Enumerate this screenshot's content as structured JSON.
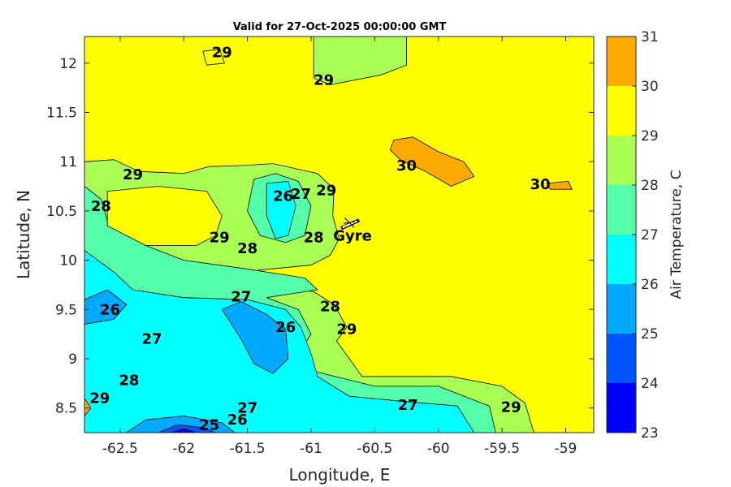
{
  "chart_data": {
    "type": "heatmap",
    "title": "Valid for 27-Oct-2025 00:00:00 GMT",
    "xlabel": "Longitude, E",
    "ylabel": "Latitude, N",
    "xlim": [
      -62.78,
      -58.78
    ],
    "ylim": [
      8.25,
      12.27
    ],
    "xticks": [
      -62.5,
      -62,
      -61.5,
      -61,
      -60.5,
      -60,
      -59.5,
      -59
    ],
    "xtick_labels": [
      "-62.5",
      "-62",
      "-61.5",
      "-61",
      "-60.5",
      "-60",
      "-59.5",
      "-59"
    ],
    "yticks": [
      8.5,
      9,
      9.5,
      10,
      10.5,
      11,
      11.5,
      12
    ],
    "ytick_labels": [
      "8.5",
      "9",
      "9.5",
      "10",
      "10.5",
      "11",
      "11.5",
      "12"
    ],
    "colorbar": {
      "label": "Air Temperature, C",
      "levels": [
        23,
        24,
        25,
        26,
        27,
        28,
        29,
        30,
        31
      ],
      "tick_labels": [
        "23",
        "24",
        "25",
        "26",
        "27",
        "28",
        "29",
        "30",
        "31"
      ],
      "colors": [
        "#0000ff",
        "#0055ff",
        "#00aaff",
        "#00ffff",
        "#55ffaa",
        "#aaff55",
        "#ffff00",
        "#ffaa00",
        "#ff5500"
      ]
    },
    "regions": [
      {
        "level": 29,
        "points": [
          [
            -62.78,
            8.25
          ],
          [
            -58.78,
            8.25
          ],
          [
            -58.78,
            12.27
          ],
          [
            -62.78,
            12.27
          ]
        ]
      },
      {
        "level": 28,
        "points": [
          [
            -61.55,
            12.27
          ],
          [
            -60.98,
            12.27
          ],
          [
            -60.98,
            11.85
          ],
          [
            -60.85,
            11.78
          ],
          [
            -60.45,
            11.88
          ],
          [
            -60.25,
            11.98
          ],
          [
            -60.25,
            12.27
          ]
        ]
      },
      {
        "level": 28,
        "points": [
          [
            -62.78,
            8.25
          ],
          [
            -62.78,
            11.0
          ],
          [
            -62.55,
            11.02
          ],
          [
            -62.35,
            10.9
          ],
          [
            -62.0,
            10.88
          ],
          [
            -61.8,
            10.95
          ],
          [
            -61.55,
            10.96
          ],
          [
            -61.3,
            10.98
          ],
          [
            -60.95,
            10.88
          ],
          [
            -60.82,
            10.72
          ],
          [
            -60.83,
            10.45
          ],
          [
            -60.78,
            10.22
          ],
          [
            -60.85,
            10.05
          ],
          [
            -61.0,
            9.95
          ],
          [
            -61.4,
            9.9
          ],
          [
            -61.85,
            9.8
          ],
          [
            -61.3,
            9.73
          ],
          [
            -60.98,
            9.68
          ],
          [
            -60.82,
            9.55
          ],
          [
            -60.72,
            9.32
          ],
          [
            -60.8,
            9.18
          ],
          [
            -60.6,
            8.82
          ],
          [
            -60.3,
            8.82
          ],
          [
            -59.9,
            8.82
          ],
          [
            -59.5,
            8.72
          ],
          [
            -59.32,
            8.55
          ],
          [
            -59.25,
            8.25
          ]
        ]
      },
      {
        "level": 27,
        "points": [
          [
            -62.78,
            8.25
          ],
          [
            -62.78,
            10.75
          ],
          [
            -62.65,
            10.62
          ],
          [
            -62.6,
            10.4
          ],
          [
            -62.45,
            10.32
          ],
          [
            -62.3,
            10.15
          ],
          [
            -62.0,
            10.0
          ],
          [
            -61.55,
            9.92
          ],
          [
            -61.05,
            9.82
          ],
          [
            -60.95,
            9.7
          ],
          [
            -61.35,
            9.62
          ],
          [
            -61.1,
            9.5
          ],
          [
            -61.0,
            9.25
          ],
          [
            -61.1,
            9.05
          ],
          [
            -61.0,
            8.88
          ],
          [
            -60.5,
            8.72
          ],
          [
            -60.0,
            8.72
          ],
          [
            -59.6,
            8.52
          ],
          [
            -59.55,
            8.25
          ]
        ]
      },
      {
        "level": 26,
        "points": [
          [
            -62.78,
            8.25
          ],
          [
            -62.78,
            10.1
          ],
          [
            -62.55,
            9.88
          ],
          [
            -62.4,
            9.7
          ],
          [
            -62.0,
            9.62
          ],
          [
            -61.5,
            9.6
          ],
          [
            -61.2,
            9.5
          ],
          [
            -61.08,
            9.32
          ],
          [
            -61.0,
            9.05
          ],
          [
            -60.95,
            8.82
          ],
          [
            -60.7,
            8.62
          ],
          [
            -60.3,
            8.57
          ],
          [
            -59.85,
            8.52
          ],
          [
            -59.72,
            8.25
          ]
        ]
      },
      {
        "level": 25,
        "points": [
          [
            -62.78,
            9.6
          ],
          [
            -62.6,
            9.7
          ],
          [
            -62.45,
            9.55
          ],
          [
            -62.55,
            9.4
          ],
          [
            -62.78,
            9.35
          ]
        ]
      },
      {
        "level": 25,
        "points": [
          [
            -61.7,
            9.5
          ],
          [
            -61.55,
            9.58
          ],
          [
            -61.35,
            9.45
          ],
          [
            -61.2,
            9.3
          ],
          [
            -61.18,
            9.0
          ],
          [
            -61.3,
            8.85
          ],
          [
            -61.45,
            8.95
          ],
          [
            -61.55,
            9.2
          ]
        ]
      },
      {
        "level": 25,
        "points": [
          [
            -62.45,
            8.25
          ],
          [
            -62.3,
            8.38
          ],
          [
            -62.0,
            8.42
          ],
          [
            -61.7,
            8.35
          ],
          [
            -61.6,
            8.25
          ]
        ]
      },
      {
        "level": 24,
        "points": [
          [
            -62.2,
            8.25
          ],
          [
            -62.05,
            8.33
          ],
          [
            -61.85,
            8.3
          ],
          [
            -61.75,
            8.25
          ]
        ]
      },
      {
        "level": 23,
        "points": [
          [
            -62.1,
            8.25
          ],
          [
            -62.0,
            8.29
          ],
          [
            -61.9,
            8.25
          ]
        ]
      },
      {
        "level": 29,
        "points": [
          [
            -62.6,
            10.7
          ],
          [
            -62.6,
            10.35
          ],
          [
            -62.3,
            10.15
          ],
          [
            -61.9,
            10.15
          ],
          [
            -61.75,
            10.25
          ],
          [
            -61.7,
            10.45
          ],
          [
            -61.82,
            10.7
          ],
          [
            -62.2,
            10.75
          ]
        ]
      },
      {
        "level": 27,
        "points": [
          [
            -61.45,
            10.82
          ],
          [
            -61.28,
            10.88
          ],
          [
            -61.1,
            10.8
          ],
          [
            -61.0,
            10.55
          ],
          [
            -61.05,
            10.25
          ],
          [
            -61.2,
            10.18
          ],
          [
            -61.4,
            10.25
          ],
          [
            -61.5,
            10.5
          ]
        ]
      },
      {
        "level": 26,
        "points": [
          [
            -61.35,
            10.78
          ],
          [
            -61.18,
            10.8
          ],
          [
            -61.12,
            10.55
          ],
          [
            -61.18,
            10.25
          ],
          [
            -61.28,
            10.22
          ],
          [
            -61.35,
            10.45
          ]
        ]
      },
      {
        "level": 30,
        "points": [
          [
            -60.35,
            11.22
          ],
          [
            -60.2,
            11.25
          ],
          [
            -60.0,
            11.1
          ],
          [
            -59.8,
            11.0
          ],
          [
            -59.72,
            10.85
          ],
          [
            -59.9,
            10.75
          ],
          [
            -60.1,
            10.9
          ],
          [
            -60.3,
            11.02
          ],
          [
            -60.38,
            11.12
          ]
        ]
      },
      {
        "level": 30,
        "points": [
          [
            -59.15,
            10.78
          ],
          [
            -58.98,
            10.8
          ],
          [
            -58.95,
            10.72
          ],
          [
            -59.12,
            10.72
          ]
        ]
      },
      {
        "level": 30,
        "points": [
          [
            -62.78,
            8.6
          ],
          [
            -62.73,
            8.5
          ],
          [
            -62.78,
            8.42
          ]
        ]
      },
      {
        "level": 29,
        "points": [
          [
            -61.85,
            12.12
          ],
          [
            -61.72,
            12.14
          ],
          [
            -61.68,
            12.0
          ],
          [
            -61.82,
            11.98
          ]
        ]
      }
    ],
    "contour_labels": [
      {
        "lon": -61.7,
        "lat": 12.11,
        "text": "29"
      },
      {
        "lon": -60.9,
        "lat": 11.83,
        "text": "29"
      },
      {
        "lon": -62.4,
        "lat": 10.87,
        "text": "29"
      },
      {
        "lon": -62.65,
        "lat": 10.55,
        "text": "28"
      },
      {
        "lon": -61.72,
        "lat": 10.23,
        "text": "29"
      },
      {
        "lon": -61.5,
        "lat": 10.12,
        "text": "28"
      },
      {
        "lon": -61.22,
        "lat": 10.65,
        "text": "26"
      },
      {
        "lon": -61.08,
        "lat": 10.67,
        "text": "27"
      },
      {
        "lon": -60.98,
        "lat": 10.23,
        "text": "28"
      },
      {
        "lon": -60.88,
        "lat": 10.71,
        "text": "29"
      },
      {
        "lon": -60.25,
        "lat": 10.96,
        "text": "30"
      },
      {
        "lon": -59.2,
        "lat": 10.77,
        "text": "30"
      },
      {
        "lon": -62.58,
        "lat": 9.5,
        "text": "26"
      },
      {
        "lon": -61.55,
        "lat": 9.63,
        "text": "27"
      },
      {
        "lon": -60.85,
        "lat": 9.53,
        "text": "28"
      },
      {
        "lon": -61.2,
        "lat": 9.32,
        "text": "26"
      },
      {
        "lon": -60.72,
        "lat": 9.3,
        "text": "29"
      },
      {
        "lon": -62.25,
        "lat": 9.2,
        "text": "27"
      },
      {
        "lon": -62.43,
        "lat": 8.78,
        "text": "28"
      },
      {
        "lon": -62.66,
        "lat": 8.6,
        "text": "29"
      },
      {
        "lon": -61.5,
        "lat": 8.5,
        "text": "27"
      },
      {
        "lon": -61.58,
        "lat": 8.38,
        "text": "26"
      },
      {
        "lon": -61.8,
        "lat": 8.33,
        "text": "25"
      },
      {
        "lon": -60.24,
        "lat": 8.53,
        "text": "27"
      },
      {
        "lon": -59.43,
        "lat": 8.51,
        "text": "29"
      }
    ],
    "station": {
      "name": "Gyre",
      "lon": -60.7,
      "lat": 10.2
    }
  }
}
